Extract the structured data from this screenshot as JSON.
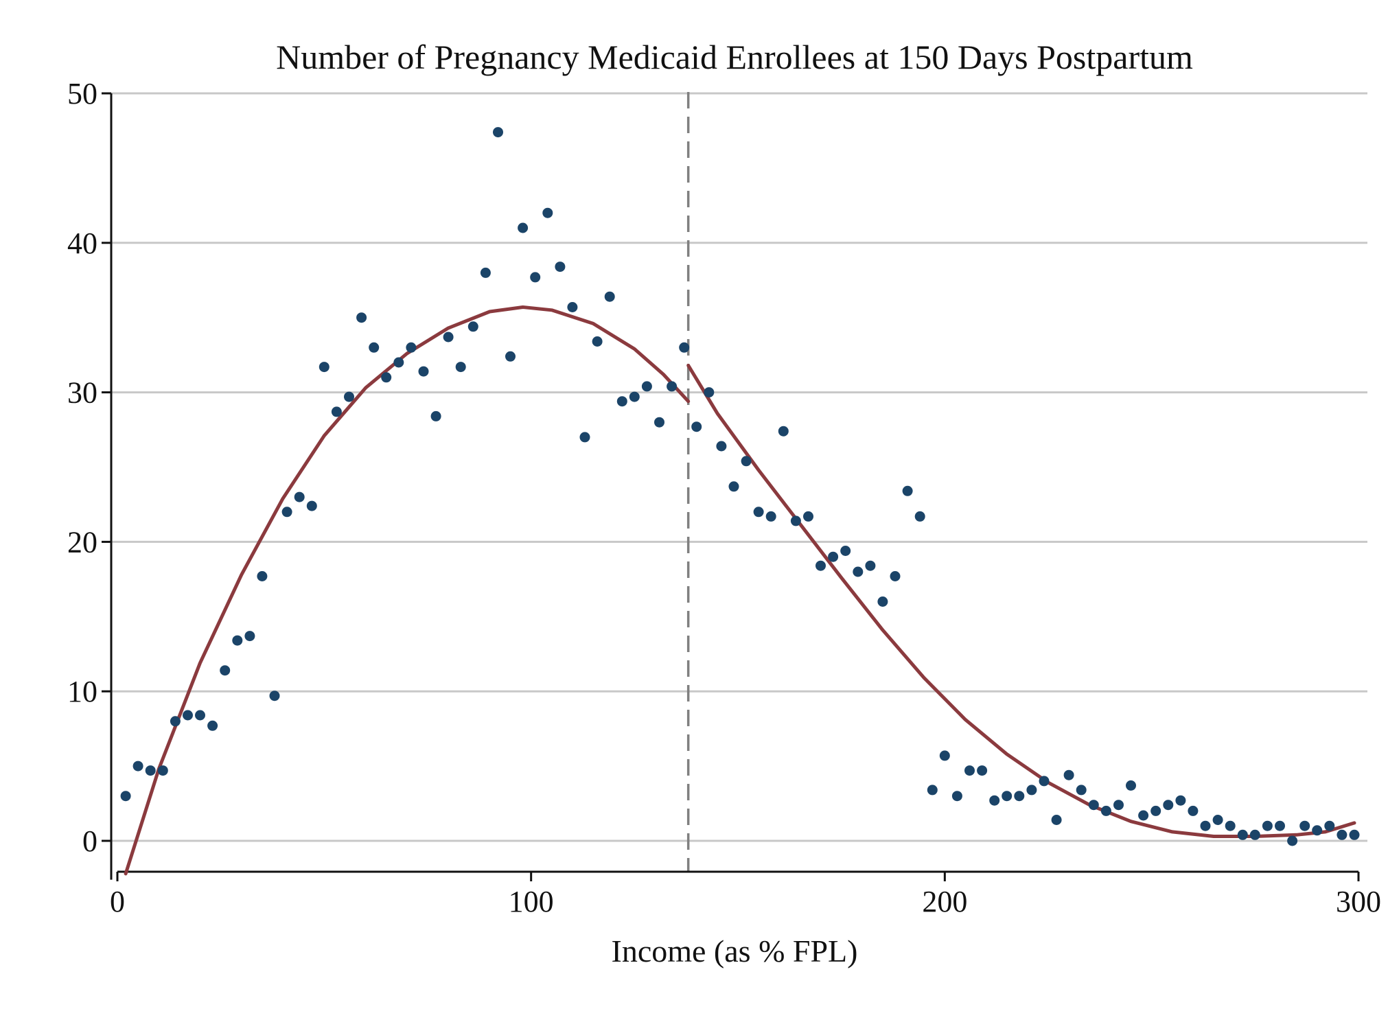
{
  "chart_data": {
    "type": "scatter",
    "title": "Number of Pregnancy Medicaid Enrollees at 150 Days Postpartum",
    "xlabel": "Income (as % FPL)",
    "ylabel": "",
    "xlim": [
      0,
      300
    ],
    "ylim": [
      -2.6,
      50
    ],
    "x_ticks": [
      0,
      100,
      200,
      300
    ],
    "y_ticks": [
      0,
      10,
      20,
      30,
      40,
      50
    ],
    "x_tick_labels": [
      "0",
      "100",
      "200",
      "300"
    ],
    "y_tick_labels": [
      "0",
      "10",
      "20",
      "30",
      "40",
      "50"
    ],
    "grid": "horizontal",
    "cutoff": 138,
    "colors": {
      "points": "#1b4468",
      "fit": "#8b3a3e",
      "cutoff": "#808080",
      "grid": "#c8c8c8"
    },
    "points": [
      [
        2,
        3.0
      ],
      [
        5,
        5.0
      ],
      [
        8,
        4.7
      ],
      [
        11,
        4.7
      ],
      [
        14,
        8.0
      ],
      [
        17,
        8.4
      ],
      [
        20,
        8.4
      ],
      [
        23,
        7.7
      ],
      [
        26,
        11.4
      ],
      [
        29,
        13.4
      ],
      [
        32,
        13.7
      ],
      [
        35,
        17.7
      ],
      [
        38,
        9.7
      ],
      [
        41,
        22.0
      ],
      [
        44,
        23.0
      ],
      [
        47,
        22.4
      ],
      [
        50,
        31.7
      ],
      [
        53,
        28.7
      ],
      [
        56,
        29.7
      ],
      [
        59,
        35.0
      ],
      [
        62,
        33.0
      ],
      [
        65,
        31.0
      ],
      [
        68,
        32.0
      ],
      [
        71,
        33.0
      ],
      [
        74,
        31.4
      ],
      [
        77,
        28.4
      ],
      [
        80,
        33.7
      ],
      [
        83,
        31.7
      ],
      [
        86,
        34.4
      ],
      [
        89,
        38.0
      ],
      [
        92,
        47.4
      ],
      [
        95,
        32.4
      ],
      [
        98,
        41.0
      ],
      [
        101,
        37.7
      ],
      [
        104,
        42.0
      ],
      [
        107,
        38.4
      ],
      [
        110,
        35.7
      ],
      [
        113,
        27.0
      ],
      [
        116,
        33.4
      ],
      [
        119,
        36.4
      ],
      [
        122,
        29.4
      ],
      [
        125,
        29.7
      ],
      [
        128,
        30.4
      ],
      [
        131,
        28.0
      ],
      [
        134,
        30.4
      ],
      [
        137,
        33.0
      ],
      [
        140,
        27.7
      ],
      [
        143,
        30.0
      ],
      [
        146,
        26.4
      ],
      [
        149,
        23.7
      ],
      [
        152,
        25.4
      ],
      [
        155,
        22.0
      ],
      [
        158,
        21.7
      ],
      [
        161,
        27.4
      ],
      [
        164,
        21.4
      ],
      [
        167,
        21.7
      ],
      [
        170,
        18.4
      ],
      [
        173,
        19.0
      ],
      [
        176,
        19.4
      ],
      [
        179,
        18.0
      ],
      [
        182,
        18.4
      ],
      [
        185,
        16.0
      ],
      [
        188,
        17.7
      ],
      [
        191,
        23.4
      ],
      [
        194,
        21.7
      ],
      [
        197,
        3.4
      ],
      [
        200,
        5.7
      ],
      [
        203,
        3.0
      ],
      [
        206,
        4.7
      ],
      [
        209,
        4.7
      ],
      [
        212,
        2.7
      ],
      [
        215,
        3.0
      ],
      [
        218,
        3.0
      ],
      [
        221,
        3.4
      ],
      [
        224,
        4.0
      ],
      [
        227,
        1.4
      ],
      [
        230,
        4.4
      ],
      [
        233,
        3.4
      ],
      [
        236,
        2.4
      ],
      [
        239,
        2.0
      ],
      [
        242,
        2.4
      ],
      [
        245,
        3.7
      ],
      [
        248,
        1.7
      ],
      [
        251,
        2.0
      ],
      [
        254,
        2.4
      ],
      [
        257,
        2.7
      ],
      [
        260,
        2.0
      ],
      [
        263,
        1.0
      ],
      [
        266,
        1.4
      ],
      [
        269,
        1.0
      ],
      [
        272,
        0.4
      ],
      [
        275,
        0.4
      ],
      [
        278,
        1.0
      ],
      [
        281,
        1.0
      ],
      [
        284,
        0.0
      ],
      [
        287,
        1.0
      ],
      [
        290,
        0.7
      ],
      [
        293,
        1.0
      ],
      [
        296,
        0.4
      ],
      [
        299,
        0.4
      ]
    ],
    "fit_left": [
      [
        2,
        -2.2
      ],
      [
        10,
        4.8
      ],
      [
        20,
        11.9
      ],
      [
        30,
        17.8
      ],
      [
        40,
        22.9
      ],
      [
        50,
        27.1
      ],
      [
        60,
        30.3
      ],
      [
        70,
        32.6
      ],
      [
        80,
        34.3
      ],
      [
        90,
        35.4
      ],
      [
        98,
        35.7
      ],
      [
        105,
        35.5
      ],
      [
        115,
        34.6
      ],
      [
        125,
        32.9
      ],
      [
        132,
        31.2
      ],
      [
        138,
        29.4
      ]
    ],
    "fit_right": [
      [
        138,
        31.8
      ],
      [
        145,
        28.6
      ],
      [
        155,
        24.8
      ],
      [
        165,
        21.2
      ],
      [
        175,
        17.6
      ],
      [
        185,
        14.1
      ],
      [
        195,
        10.9
      ],
      [
        205,
        8.1
      ],
      [
        215,
        5.8
      ],
      [
        225,
        3.9
      ],
      [
        235,
        2.4
      ],
      [
        245,
        1.3
      ],
      [
        255,
        0.6
      ],
      [
        265,
        0.3
      ],
      [
        275,
        0.3
      ],
      [
        285,
        0.4
      ],
      [
        292,
        0.6
      ],
      [
        299,
        1.2
      ]
    ]
  }
}
